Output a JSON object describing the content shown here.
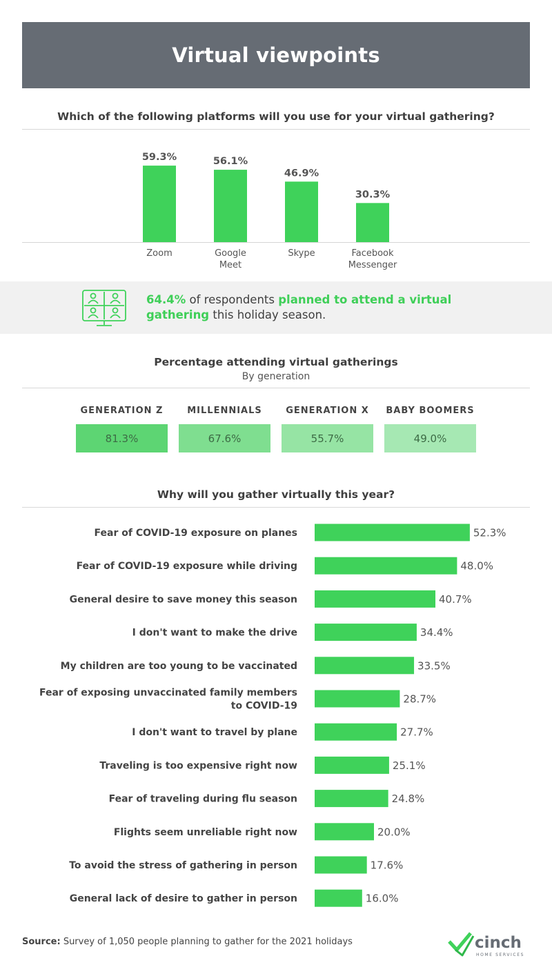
{
  "title": "Virtual viewpoints",
  "platforms_question": "Which of the following platforms will you use for your virtual gathering?",
  "callout": {
    "stat": "64.4%",
    "text1": " of respondents ",
    "highlight": "planned to attend a virtual gathering",
    "text2": " this holiday season."
  },
  "generation": {
    "title": "Percentage attending virtual gatherings",
    "subtitle": "By generation",
    "items": [
      {
        "label": "GENERATION Z",
        "value": "81.3%",
        "color": "#5dd573"
      },
      {
        "label": "MILLENNIALS",
        "value": "67.6%",
        "color": "#7fde90"
      },
      {
        "label": "GENERATION X",
        "value": "55.7%",
        "color": "#96e4a4"
      },
      {
        "label": "BABY BOOMERS",
        "value": "49.0%",
        "color": "#a6e8b3"
      }
    ]
  },
  "reasons_question": "Why will you gather virtually this year?",
  "source_label": "Source:",
  "source_text": " Survey of 1,050 people planning to gather for the 2021 holidays",
  "logo": {
    "name": "cinch",
    "tagline": "HOME SERVICES"
  },
  "colors": {
    "accent": "#3fd25a",
    "banner": "#666c74",
    "callout_bg": "#f1f1f1"
  },
  "chart_data": [
    {
      "type": "bar",
      "title": "Which of the following platforms will you use for your virtual gathering?",
      "categories": [
        [
          "Zoom"
        ],
        [
          "Google",
          "Meet"
        ],
        [
          "Skype"
        ],
        [
          "Facebook",
          "Messenger"
        ]
      ],
      "values": [
        59.3,
        56.1,
        46.9,
        30.3
      ],
      "value_labels": [
        "59.3%",
        "56.1%",
        "46.9%",
        "30.3%"
      ]
    },
    {
      "type": "bar",
      "orientation": "horizontal",
      "title": "Why will you gather virtually this year?",
      "categories": [
        [
          "Fear of COVID-19 exposure on planes"
        ],
        [
          "Fear of COVID-19 exposure while driving"
        ],
        [
          "General desire to save money this season"
        ],
        [
          "I don't want to make the drive"
        ],
        [
          "My children are too young to be vaccinated"
        ],
        [
          "Fear of exposing unvaccinated family members",
          "to COVID-19"
        ],
        [
          "I don't want to travel by plane"
        ],
        [
          "Traveling is too expensive right now"
        ],
        [
          "Fear of traveling during flu season"
        ],
        [
          "Flights seem unreliable right now"
        ],
        [
          "To avoid the stress of gathering in person"
        ],
        [
          "General lack of desire to gather in person"
        ]
      ],
      "values": [
        52.3,
        48.0,
        40.7,
        34.4,
        33.5,
        28.7,
        27.7,
        25.1,
        24.8,
        20.0,
        17.6,
        16.0
      ],
      "value_labels": [
        "52.3%",
        "48.0%",
        "40.7%",
        "34.4%",
        "33.5%",
        "28.7%",
        "27.7%",
        "25.1%",
        "24.8%",
        "20.0%",
        "17.6%",
        "16.0%"
      ]
    }
  ]
}
